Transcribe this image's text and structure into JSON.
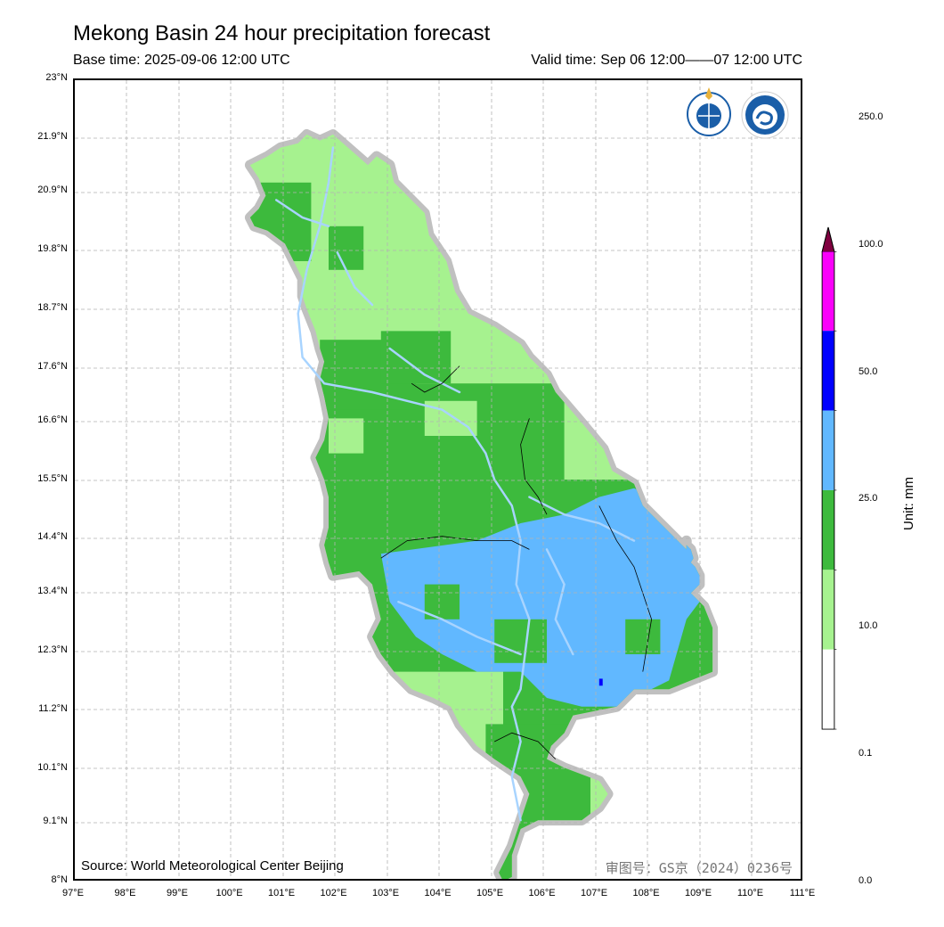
{
  "title": "Mekong Basin 24 hour precipitation forecast",
  "base_time": "Base time: 2025-09-06 12:00 UTC",
  "valid_time": "Valid time: Sep 06 12:00——07 12:00 UTC",
  "source": "Source: World Meteorological Center Beijing",
  "review_number": "审图号：GS京（2024）0236号",
  "colorbar": {
    "unit_label": "Unit: mm",
    "levels": [
      "0.0",
      "0.1",
      "10.0",
      "25.0",
      "50.0",
      "100.0",
      "250.0"
    ],
    "colors": [
      "#ffffff",
      "#a6f28f",
      "#3dba3d",
      "#61b8ff",
      "#0000ff",
      "#fa00fa",
      "#800040"
    ]
  },
  "axes": {
    "lon_ticks": [
      "97°E",
      "98°E",
      "99°E",
      "100°E",
      "101°E",
      "102°E",
      "103°E",
      "104°E",
      "105°E",
      "106°E",
      "107°E",
      "108°E",
      "109°E",
      "110°E",
      "111°E"
    ],
    "lat_ticks": [
      "23°N",
      "21.9°N",
      "20.9°N",
      "19.8°N",
      "18.7°N",
      "17.6°N",
      "16.6°N",
      "15.5°N",
      "14.4°N",
      "13.4°N",
      "12.3°N",
      "11.2°N",
      "10.1°N",
      "9.1°N",
      "8°N"
    ]
  },
  "map_colors": {
    "light_green": "#a6f28f",
    "green": "#3dba3d",
    "light_blue": "#61b8ff",
    "river": "#a8d4ff",
    "outline": "#c0c0c0",
    "grid": "#b3b3b3"
  },
  "logos": [
    "wmo-logo-icon",
    "cma-logo-icon"
  ]
}
